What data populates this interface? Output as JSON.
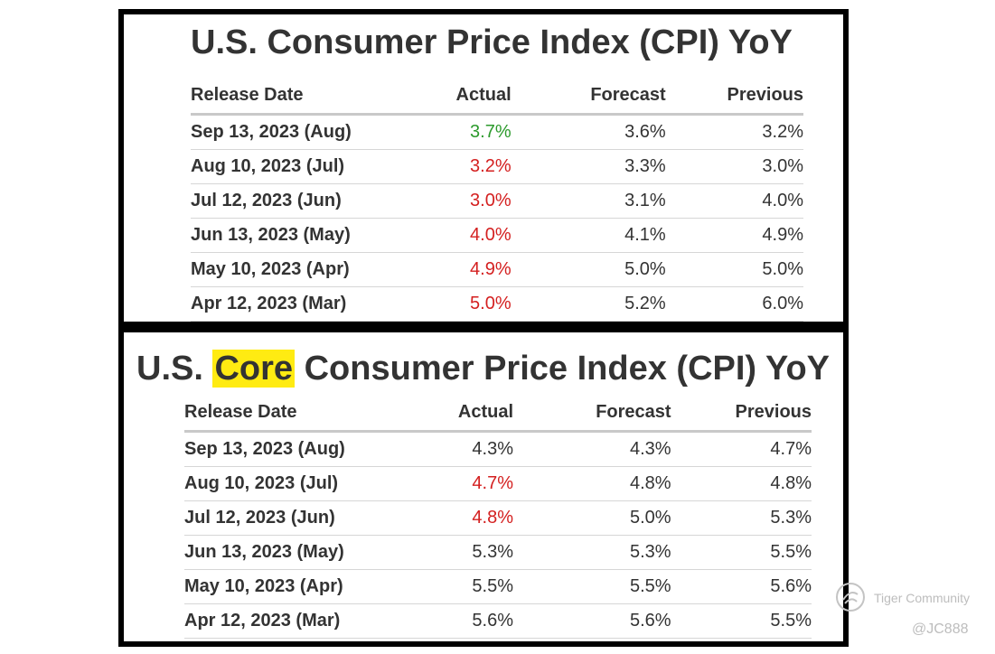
{
  "headline_cpi": {
    "title": "U.S. Consumer Price Index (CPI) YoY",
    "headers": {
      "date": "Release Date",
      "actual": "Actual",
      "forecast": "Forecast",
      "previous": "Previous"
    },
    "rows": [
      {
        "date": "Sep 13, 2023 (Aug)",
        "actual": "3.7%",
        "forecast": "3.6%",
        "previous": "3.2%",
        "trend": "up"
      },
      {
        "date": "Aug 10, 2023 (Jul)",
        "actual": "3.2%",
        "forecast": "3.3%",
        "previous": "3.0%",
        "trend": "down"
      },
      {
        "date": "Jul 12, 2023 (Jun)",
        "actual": "3.0%",
        "forecast": "3.1%",
        "previous": "4.0%",
        "trend": "down"
      },
      {
        "date": "Jun 13, 2023 (May)",
        "actual": "4.0%",
        "forecast": "4.1%",
        "previous": "4.9%",
        "trend": "down"
      },
      {
        "date": "May 10, 2023 (Apr)",
        "actual": "4.9%",
        "forecast": "5.0%",
        "previous": "5.0%",
        "trend": "down"
      },
      {
        "date": "Apr 12, 2023 (Mar)",
        "actual": "5.0%",
        "forecast": "5.2%",
        "previous": "6.0%",
        "trend": "down"
      }
    ]
  },
  "core_cpi": {
    "title_prefix": "U.S.",
    "title_highlight": "Core",
    "title_suffix": "Consumer Price Index (CPI) YoY",
    "headers": {
      "date": "Release Date",
      "actual": "Actual",
      "forecast": "Forecast",
      "previous": "Previous"
    },
    "rows": [
      {
        "date": "Sep 13, 2023 (Aug)",
        "actual": "4.3%",
        "forecast": "4.3%",
        "previous": "4.7%",
        "trend": "neutral"
      },
      {
        "date": "Aug 10, 2023 (Jul)",
        "actual": "4.7%",
        "forecast": "4.8%",
        "previous": "4.8%",
        "trend": "down"
      },
      {
        "date": "Jul 12, 2023 (Jun)",
        "actual": "4.8%",
        "forecast": "5.0%",
        "previous": "5.3%",
        "trend": "down"
      },
      {
        "date": "Jun 13, 2023 (May)",
        "actual": "5.3%",
        "forecast": "5.3%",
        "previous": "5.5%",
        "trend": "neutral"
      },
      {
        "date": "May 10, 2023 (Apr)",
        "actual": "5.5%",
        "forecast": "5.5%",
        "previous": "5.6%",
        "trend": "neutral"
      },
      {
        "date": "Apr 12, 2023 (Mar)",
        "actual": "5.6%",
        "forecast": "5.6%",
        "previous": "5.5%",
        "trend": "neutral"
      }
    ]
  },
  "watermark": {
    "logo_icon": "tiger-logo-icon",
    "text": "Tiger Community",
    "user": "@JC888"
  },
  "colors": {
    "up": "#2c9a2c",
    "down": "#d42020",
    "neutral": "#333333",
    "highlight": "#ffeb12"
  }
}
